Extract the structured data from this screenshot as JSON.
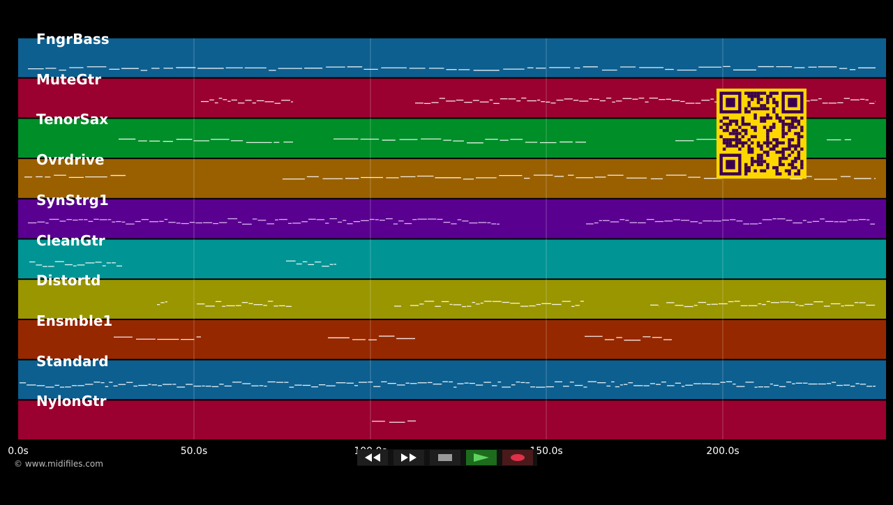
{
  "tracks": [
    {
      "name": "FngrBass",
      "color": "#0d5f8f"
    },
    {
      "name": "MuteGtr",
      "color": "#9a0030"
    },
    {
      "name": "TenorSax",
      "color": "#008e28"
    },
    {
      "name": "Ovrdrive",
      "color": "#9a6000"
    },
    {
      "name": "SynStrg1",
      "color": "#5a0090"
    },
    {
      "name": "CleanGtr",
      "color": "#009494"
    },
    {
      "name": "Distortd",
      "color": "#9a9600"
    },
    {
      "name": "Ensmble1",
      "color": "#962800"
    },
    {
      "name": "Standard",
      "color": "#0d5f8f"
    },
    {
      "name": "NylonGtr",
      "color": "#9a0030"
    }
  ],
  "timeline": {
    "ticks": [
      "0.0s",
      "50.0s",
      "100.0s",
      "150.0s",
      "200.0s"
    ]
  },
  "copyright": "© www.midifiles.com",
  "transport": {
    "buttons": [
      {
        "name": "rewind",
        "icon": "rewind-icon"
      },
      {
        "name": "fast-forward",
        "icon": "fast-forward-icon"
      },
      {
        "name": "stop",
        "icon": "stop-icon"
      },
      {
        "name": "play",
        "icon": "play-icon"
      },
      {
        "name": "record",
        "icon": "record-icon"
      }
    ]
  },
  "qr_code": {
    "icon": "qr-code-icon",
    "color": "#ffd700",
    "dark_color": "#3a0050"
  }
}
